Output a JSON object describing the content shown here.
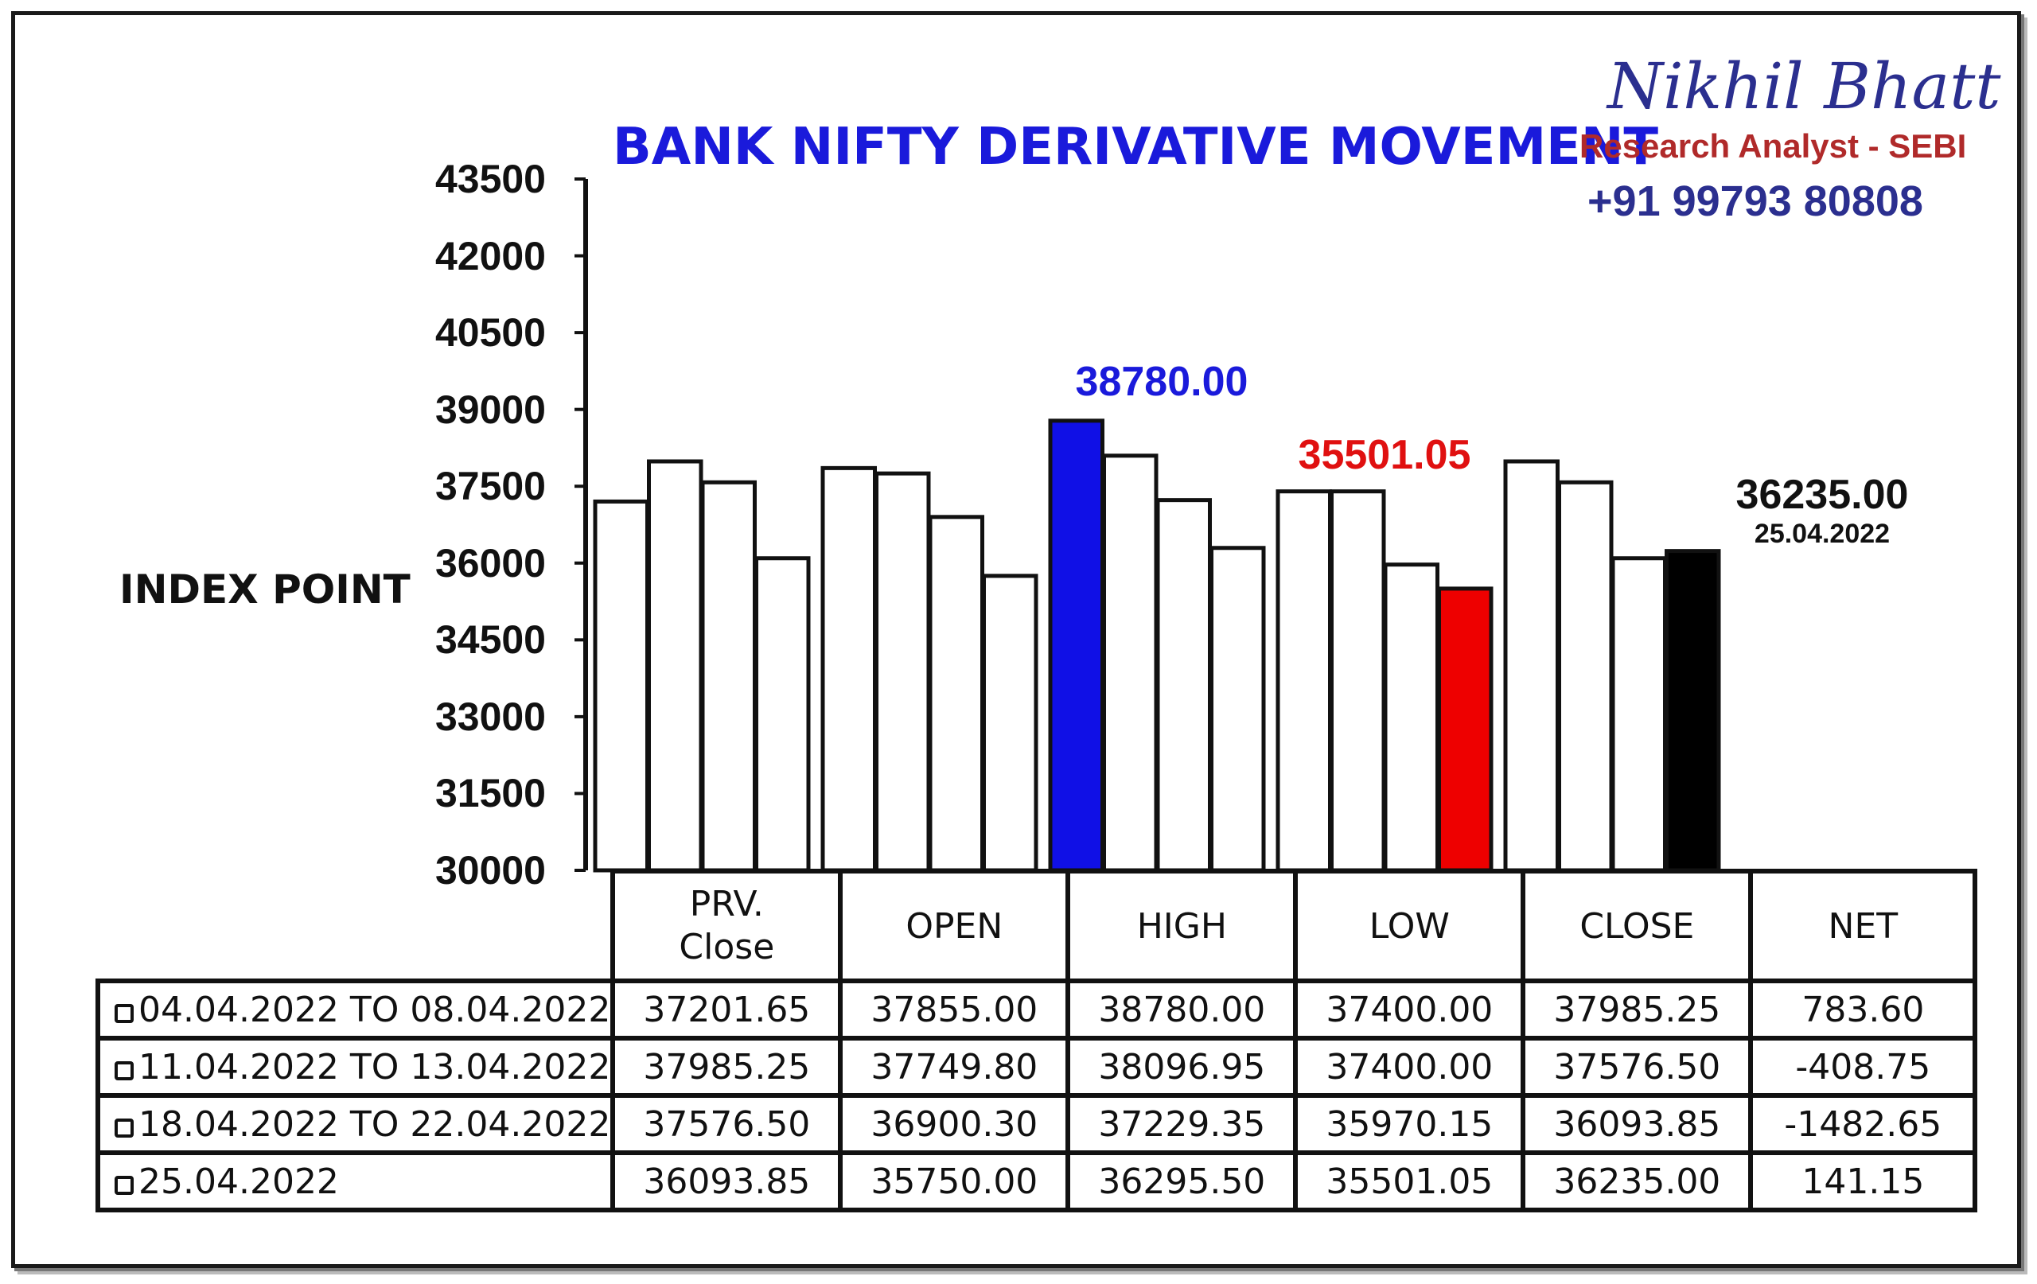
{
  "brand": {
    "name": "Nikhil Bhatt",
    "role": "Research Analyst - SEBI",
    "phone": "+91 99793 80808"
  },
  "chart_data": {
    "type": "bar",
    "title": "BANK NIFTY DERIVATIVE MOVEMENT",
    "ylabel": "INDEX POINT",
    "ylim": [
      30000,
      43500
    ],
    "yticks": [
      "43500",
      "42000",
      "40500",
      "39000",
      "37500",
      "36000",
      "34500",
      "33000",
      "31500",
      "30000"
    ],
    "categories": [
      "PRV. Close",
      "OPEN",
      "HIGH",
      "LOW",
      "CLOSE"
    ],
    "series": [
      {
        "name": "04.04.2022 TO 08.04.2022",
        "values": [
          37201.65,
          37855.0,
          38780.0,
          37400.0,
          37985.25
        ]
      },
      {
        "name": "11.04.2022 TO 13.04.2022",
        "values": [
          37985.25,
          37749.8,
          38096.95,
          37400.0,
          37576.5
        ]
      },
      {
        "name": "18.04.2022 TO 22.04.2022",
        "values": [
          37576.5,
          36900.3,
          37229.35,
          35970.15,
          36093.85
        ]
      },
      {
        "name": "25.04.2022",
        "values": [
          36093.85,
          35750.0,
          36295.5,
          35501.05,
          36235.0
        ]
      }
    ],
    "highlights": {
      "high": {
        "category": "HIGH",
        "series": 0,
        "color": "#1010e6"
      },
      "low": {
        "category": "LOW",
        "series": 3,
        "color": "#ee0000"
      },
      "close": {
        "category": "CLOSE",
        "series": 3,
        "color": "#000000"
      }
    },
    "annotations": {
      "high_value": "38780.00",
      "low_value": "35501.05",
      "close_value": "36235.00",
      "close_date": "25.04.2022"
    }
  },
  "table": {
    "headers": [
      "PRV.\nClose",
      "OPEN",
      "HIGH",
      "LOW",
      "CLOSE",
      "NET"
    ],
    "rows": [
      {
        "label": "04.04.2022 TO 08.04.2022",
        "cells": [
          "37201.65",
          "37855.00",
          "38780.00",
          "37400.00",
          "37985.25",
          "783.60"
        ]
      },
      {
        "label": "11.04.2022 TO 13.04.2022",
        "cells": [
          "37985.25",
          "37749.80",
          "38096.95",
          "37400.00",
          "37576.50",
          "-408.75"
        ]
      },
      {
        "label": "18.04.2022 TO 22.04.2022",
        "cells": [
          "37576.50",
          "36900.30",
          "37229.35",
          "35970.15",
          "36093.85",
          "-1482.65"
        ]
      },
      {
        "label": "25.04.2022",
        "cells": [
          "36093.85",
          "35750.00",
          "36295.50",
          "35501.05",
          "36235.00",
          "141.15"
        ]
      }
    ]
  }
}
